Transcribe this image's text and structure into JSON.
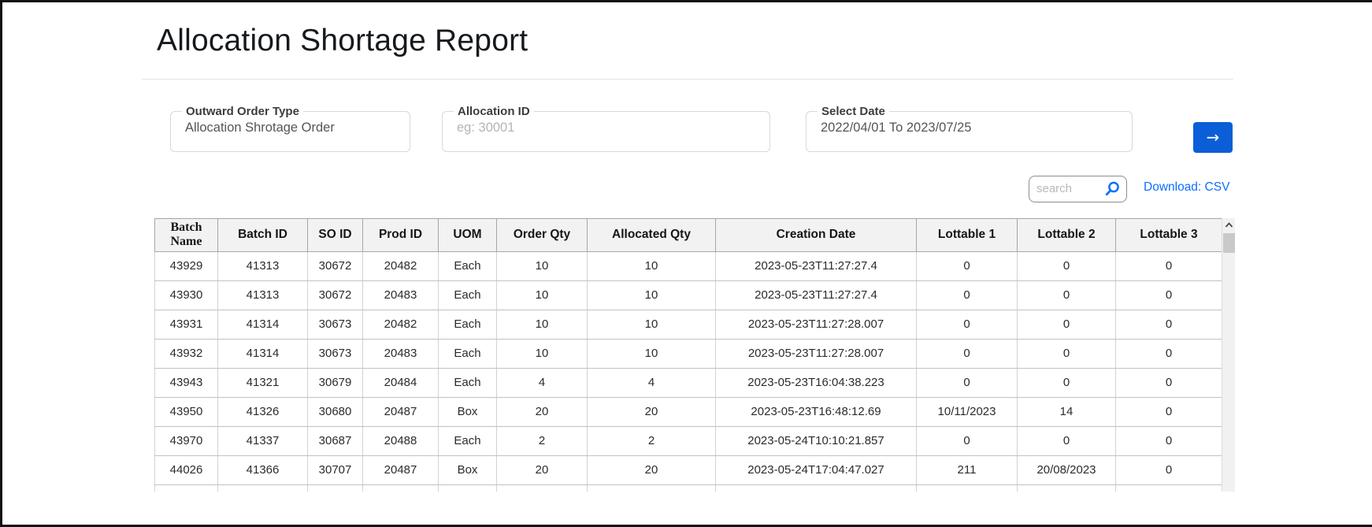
{
  "page": {
    "title": "Allocation Shortage Report"
  },
  "filters": {
    "outward_order_type": {
      "label": "Outward Order Type",
      "value": "Allocation Shrotage Order"
    },
    "allocation_id": {
      "label": "Allocation ID",
      "placeholder": "eg: 30001"
    },
    "select_date": {
      "label": "Select Date",
      "value": "2022/04/01 To 2023/07/25"
    },
    "submit_icon": "arrow-right-icon"
  },
  "toolbar": {
    "search_placeholder": "search",
    "search_icon": "magnifier-icon",
    "download_label": "Download: CSV"
  },
  "table": {
    "columns": [
      "Batch Name",
      "Batch ID",
      "SO ID",
      "Prod ID",
      "UOM",
      "Order Qty",
      "Allocated Qty",
      "Creation Date",
      "Lottable 1",
      "Lottable 2",
      "Lottable 3"
    ],
    "rows": [
      [
        "43929",
        "41313",
        "30672",
        "20482",
        "Each",
        "10",
        "10",
        "2023-05-23T11:27:27.4",
        "0",
        "0",
        "0"
      ],
      [
        "43930",
        "41313",
        "30672",
        "20483",
        "Each",
        "10",
        "10",
        "2023-05-23T11:27:27.4",
        "0",
        "0",
        "0"
      ],
      [
        "43931",
        "41314",
        "30673",
        "20482",
        "Each",
        "10",
        "10",
        "2023-05-23T11:27:28.007",
        "0",
        "0",
        "0"
      ],
      [
        "43932",
        "41314",
        "30673",
        "20483",
        "Each",
        "10",
        "10",
        "2023-05-23T11:27:28.007",
        "0",
        "0",
        "0"
      ],
      [
        "43943",
        "41321",
        "30679",
        "20484",
        "Each",
        "4",
        "4",
        "2023-05-23T16:04:38.223",
        "0",
        "0",
        "0"
      ],
      [
        "43950",
        "41326",
        "30680",
        "20487",
        "Box",
        "20",
        "20",
        "2023-05-23T16:48:12.69",
        "10/11/2023",
        "14",
        "0"
      ],
      [
        "43970",
        "41337",
        "30687",
        "20488",
        "Each",
        "2",
        "2",
        "2023-05-24T10:10:21.857",
        "0",
        "0",
        "0"
      ],
      [
        "44026",
        "41366",
        "30707",
        "20487",
        "Box",
        "20",
        "20",
        "2023-05-24T17:04:47.027",
        "211",
        "20/08/2023",
        "0"
      ]
    ]
  },
  "colors": {
    "accent_button_blue": "#0b5ed7",
    "link_blue": "#0d6efd",
    "header_background": "#f2f2f2",
    "frame_border": "#101010"
  }
}
